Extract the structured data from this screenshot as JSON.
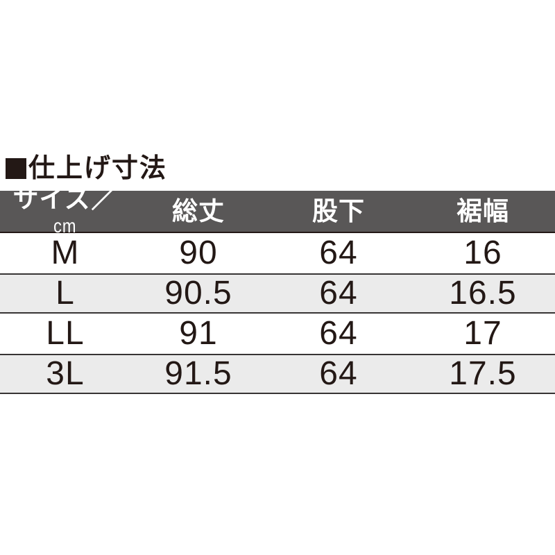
{
  "heading": {
    "bullet": "■",
    "text": "仕上げ寸法"
  },
  "table": {
    "header_bg": "#595757",
    "header_text_color": "#ffffff",
    "alt_row_bg": "#ebebeb",
    "text_color": "#231815",
    "columns": [
      {
        "label": "サイズ／",
        "unit": "cm"
      },
      {
        "label": "総丈"
      },
      {
        "label": "股下"
      },
      {
        "label": "裾幅"
      }
    ],
    "rows": [
      {
        "size": "M",
        "total_length": "90",
        "inseam": "64",
        "hem_width": "16"
      },
      {
        "size": "L",
        "total_length": "90.5",
        "inseam": "64",
        "hem_width": "16.5"
      },
      {
        "size": "LL",
        "total_length": "91",
        "inseam": "64",
        "hem_width": "17"
      },
      {
        "size": "3L",
        "total_length": "91.5",
        "inseam": "64",
        "hem_width": "17.5"
      }
    ]
  },
  "chart_data": {
    "type": "table",
    "title": "仕上げ寸法",
    "unit": "cm",
    "columns": [
      "サイズ／cm",
      "総丈",
      "股下",
      "裾幅"
    ],
    "rows": [
      [
        "M",
        90,
        64,
        16
      ],
      [
        "L",
        90.5,
        64,
        16.5
      ],
      [
        "LL",
        91,
        64,
        17
      ],
      [
        "3L",
        91.5,
        64,
        17.5
      ]
    ]
  }
}
